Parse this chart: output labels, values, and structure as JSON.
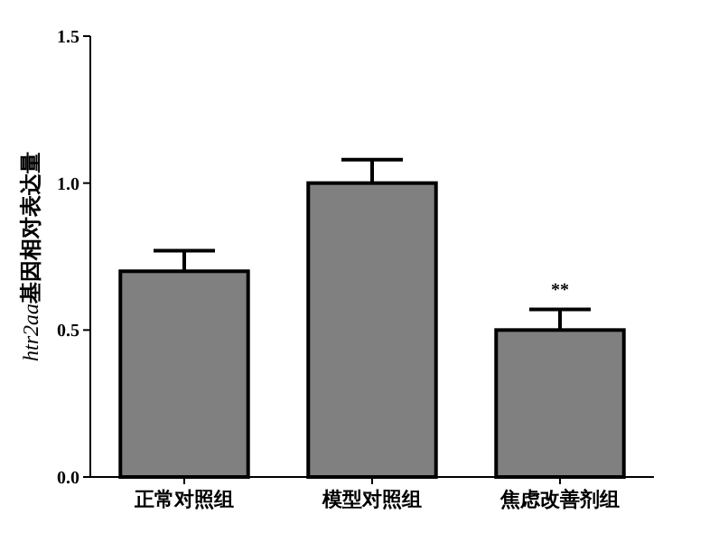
{
  "chart_data": {
    "type": "bar",
    "ylabel": "htr2aa基因相对表达量",
    "categories": [
      "正常对照组",
      "模型对照组",
      "焦虑改善剂组"
    ],
    "values": [
      0.7,
      1.0,
      0.5
    ],
    "color": "#808080",
    "errors": [
      [
        0.7,
        0.77
      ],
      [
        1.0,
        1.08
      ],
      [
        0.5,
        0.57
      ]
    ],
    "annotations": [
      "**"
    ],
    "ylim": [
      0,
      1.5
    ],
    "yticks": [
      {
        "value": 0,
        "label": "0.0"
      },
      {
        "value": 0.5,
        "label": "0.5"
      },
      {
        "value": 1,
        "label": "1.0"
      },
      {
        "value": 1.5,
        "label": "1.5"
      }
    ],
    "grid": false
  }
}
